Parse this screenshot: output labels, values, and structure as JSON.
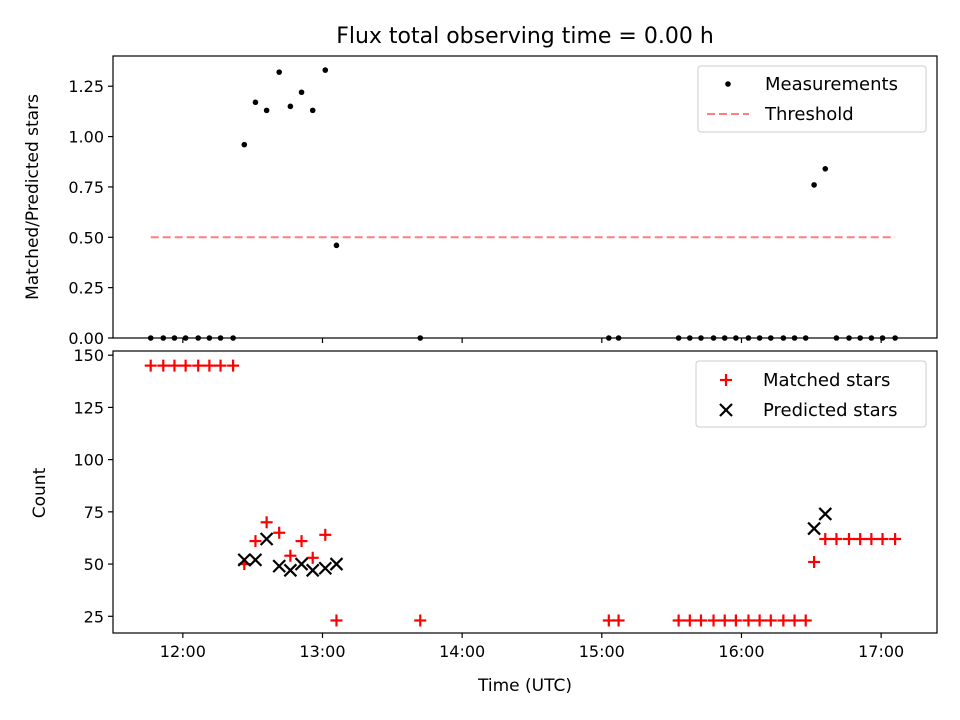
{
  "figure_title": "Flux total observing time = 0.00 h",
  "chart_data": [
    {
      "type": "scatter",
      "panel": "top",
      "title": "Flux total observing time = 0.00 h",
      "xlabel": "",
      "ylabel": "Matched/Predicted stars",
      "xlim": [
        11.5,
        17.4
      ],
      "ylim": [
        0,
        1.4
      ],
      "x_ticks": [
        12,
        13,
        14,
        15,
        16,
        17
      ],
      "y_ticks": [
        "0.00",
        "0.25",
        "0.50",
        "0.75",
        "1.00",
        "1.25"
      ],
      "legend_position": "top-right",
      "legend": [
        "Measurements",
        "Threshold"
      ],
      "series": [
        {
          "name": "Measurements",
          "marker": "dot",
          "color": "#000000",
          "x": [
            11.77,
            11.86,
            11.94,
            12.02,
            12.11,
            12.19,
            12.27,
            12.36,
            12.44,
            12.52,
            12.6,
            12.69,
            12.77,
            12.85,
            12.93,
            13.02,
            13.1,
            13.7,
            15.05,
            15.12,
            15.55,
            15.63,
            15.71,
            15.8,
            15.88,
            15.96,
            16.05,
            16.13,
            16.21,
            16.3,
            16.38,
            16.46,
            16.52,
            16.6,
            16.68,
            16.77,
            16.85,
            16.93,
            17.01,
            17.1
          ],
          "y": [
            0,
            0,
            0,
            0,
            0,
            0,
            0,
            0,
            0.96,
            1.17,
            1.13,
            1.32,
            1.15,
            1.22,
            1.13,
            1.33,
            0.46,
            0,
            0,
            0,
            0,
            0,
            0,
            0,
            0,
            0,
            0,
            0,
            0,
            0,
            0,
            0,
            0.76,
            0.84,
            0,
            0,
            0,
            0,
            0,
            0
          ]
        },
        {
          "name": "Threshold",
          "style": "dashed",
          "color": "#ff7f7f",
          "x": [
            11.77,
            17.1
          ],
          "y": [
            0.5,
            0.5
          ]
        }
      ]
    },
    {
      "type": "scatter",
      "panel": "bottom",
      "title": "",
      "xlabel": "Time (UTC)",
      "ylabel": "Count",
      "xlim": [
        11.5,
        17.4
      ],
      "ylim": [
        17,
        152
      ],
      "x_ticks": [
        12,
        13,
        14,
        15,
        16,
        17
      ],
      "x_tick_labels": [
        "12:00",
        "13:00",
        "14:00",
        "15:00",
        "16:00",
        "17:00"
      ],
      "y_ticks": [
        "25",
        "50",
        "75",
        "100",
        "125",
        "150"
      ],
      "legend_position": "top-right",
      "legend": [
        "Matched stars",
        "Predicted stars"
      ],
      "series": [
        {
          "name": "Matched stars",
          "marker": "plus",
          "color": "#ff0000",
          "x": [
            11.77,
            11.86,
            11.94,
            12.02,
            12.11,
            12.19,
            12.27,
            12.36,
            12.44,
            12.52,
            12.6,
            12.69,
            12.77,
            12.85,
            12.93,
            13.02,
            13.1,
            13.7,
            15.05,
            15.12,
            15.55,
            15.63,
            15.71,
            15.8,
            15.88,
            15.96,
            16.05,
            16.13,
            16.21,
            16.3,
            16.38,
            16.46,
            16.52,
            16.6,
            16.68,
            16.77,
            16.85,
            16.93,
            17.01,
            17.1
          ],
          "y": [
            145,
            145,
            145,
            145,
            145,
            145,
            145,
            145,
            50,
            61,
            70,
            65,
            54,
            61,
            53,
            64,
            23,
            23,
            23,
            23,
            23,
            23,
            23,
            23,
            23,
            23,
            23,
            23,
            23,
            23,
            23,
            23,
            51,
            62,
            62,
            62,
            62,
            62,
            62,
            62
          ]
        },
        {
          "name": "Predicted stars",
          "marker": "x",
          "color": "#000000",
          "x": [
            12.44,
            12.52,
            12.6,
            12.69,
            12.77,
            12.85,
            12.93,
            13.02,
            13.1,
            16.52,
            16.6
          ],
          "y": [
            52,
            52,
            62,
            49,
            47,
            50,
            47,
            48,
            50,
            67,
            74
          ]
        }
      ]
    }
  ]
}
